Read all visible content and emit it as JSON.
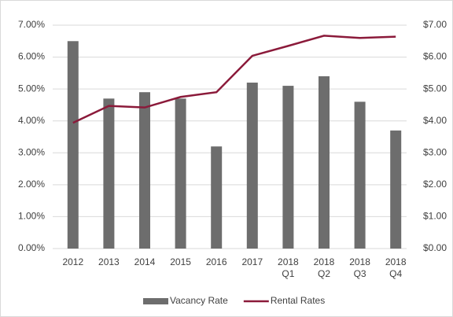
{
  "chart_data": {
    "type": "bar-line",
    "categories": [
      "2012",
      "2013",
      "2014",
      "2015",
      "2016",
      "2017",
      "2018 Q1",
      "2018 Q2",
      "2018 Q3",
      "2018 Q4"
    ],
    "series": [
      {
        "name": "Vacancy Rate",
        "type": "bar",
        "color": "#6d6d6d",
        "values": [
          6.5,
          4.7,
          4.9,
          4.7,
          3.2,
          5.2,
          5.1,
          5.4,
          4.6,
          3.7
        ]
      },
      {
        "name": "Rental Rates",
        "type": "line",
        "axis": "y2",
        "color": "#8b1a3a",
        "values": [
          3.94,
          4.47,
          4.42,
          4.75,
          4.9,
          6.04,
          6.35,
          6.67,
          6.6,
          6.64
        ]
      }
    ],
    "ylim": [
      0,
      7
    ],
    "yticks": [
      {
        "value": 0,
        "label": "0.00%"
      },
      {
        "value": 1,
        "label": "1.00%"
      },
      {
        "value": 2,
        "label": "2.00%"
      },
      {
        "value": 3,
        "label": "3.00%"
      },
      {
        "value": 4,
        "label": "4.00%"
      },
      {
        "value": 5,
        "label": "5.00%"
      },
      {
        "value": 6,
        "label": "6.00%"
      },
      {
        "value": 7,
        "label": "7.00%"
      }
    ],
    "y2lim": [
      0,
      7
    ],
    "y2ticks": [
      {
        "value": 0,
        "label": "$0.00"
      },
      {
        "value": 1,
        "label": "$1.00"
      },
      {
        "value": 2,
        "label": "$2.00"
      },
      {
        "value": 3,
        "label": "$3.00"
      },
      {
        "value": 4,
        "label": "$4.00"
      },
      {
        "value": 5,
        "label": "$5.00"
      },
      {
        "value": 6,
        "label": "$6.00"
      },
      {
        "value": 7,
        "label": "$7.00"
      }
    ],
    "grid": true,
    "legend": "bottom"
  }
}
